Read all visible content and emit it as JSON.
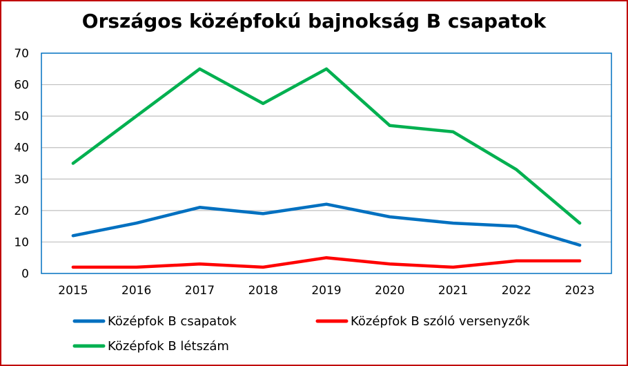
{
  "chart_data": {
    "type": "line",
    "title": "Országos középfokú bajnokság B csapatok",
    "x": [
      "2015",
      "2016",
      "2017",
      "2018",
      "2019",
      "2020",
      "2021",
      "2022",
      "2023"
    ],
    "ylim": [
      0,
      70
    ],
    "yticks": [
      0,
      10,
      20,
      30,
      40,
      50,
      60,
      70
    ],
    "grid": true,
    "legend_position": "bottom",
    "series": [
      {
        "name": "Középfok B csapatok",
        "color": "#0070c0",
        "values": [
          12,
          16,
          21,
          19,
          22,
          18,
          16,
          15,
          9
        ]
      },
      {
        "name": "Középfok B szóló versenyzők",
        "color": "#ff0000",
        "values": [
          2,
          2,
          3,
          2,
          5,
          3,
          2,
          4,
          4
        ]
      },
      {
        "name": "Középfok B létszám",
        "color": "#00b050",
        "values": [
          35,
          50,
          65,
          54,
          65,
          47,
          45,
          33,
          16
        ]
      }
    ]
  }
}
